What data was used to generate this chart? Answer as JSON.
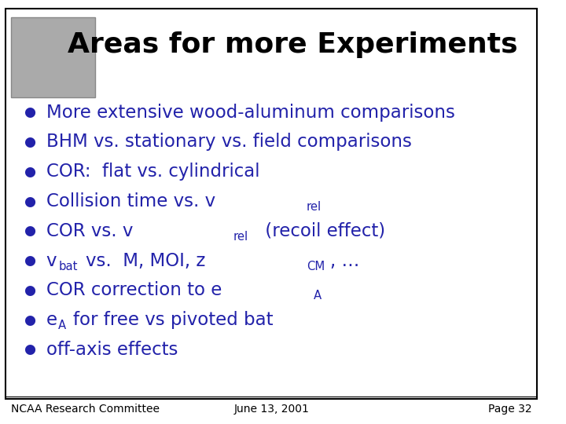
{
  "title": "Areas for more Experiments",
  "title_color": "#000000",
  "title_fontsize": 26,
  "title_fontweight": "bold",
  "bullet_color": "#2222AA",
  "bullet_fontsize": 16.5,
  "background_color": "#FFFFFF",
  "border_color": "#000000",
  "footer_left": "NCAA Research Committee",
  "footer_center": "June 13, 2001",
  "footer_right": "Page 32",
  "footer_fontsize": 10,
  "footer_color": "#000000",
  "bullets": [
    {
      "text": "More extensive wood-aluminum comparisons",
      "subscript": null,
      "suffix": null,
      "prefix": null
    },
    {
      "text": "BHM vs. stationary vs. field comparisons",
      "subscript": null,
      "suffix": null,
      "prefix": null
    },
    {
      "text": "COR:  flat vs. cylindrical",
      "subscript": null,
      "suffix": null,
      "prefix": null
    },
    {
      "text": "Collision time vs. v",
      "subscript": "rel",
      "suffix": null,
      "prefix": null
    },
    {
      "text": "COR vs. v",
      "subscript": "rel",
      "suffix": " (recoil effect)",
      "prefix": null
    },
    {
      "text": "vs.  M, MOI, z",
      "subscript2": "CM",
      "suffix2": ", …",
      "prefix": "v",
      "subscript_prefix": "bat"
    },
    {
      "text": "COR correction to e",
      "subscript": "A",
      "suffix": null,
      "prefix": null
    },
    {
      "text": "for free vs pivoted bat",
      "subscript": null,
      "suffix": null,
      "prefix": "e",
      "subscript_prefix": "A"
    },
    {
      "text": "off-axis effects",
      "subscript": null,
      "suffix": null,
      "prefix": null
    }
  ]
}
